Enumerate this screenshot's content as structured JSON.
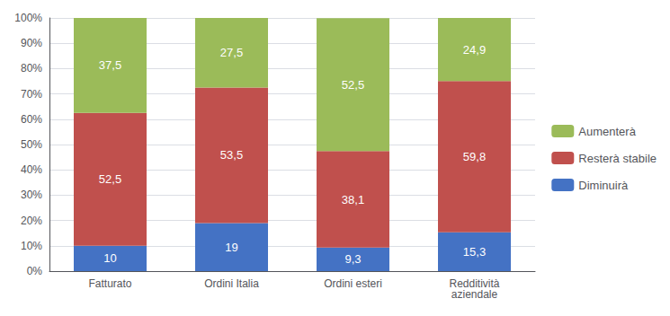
{
  "chart_data": {
    "type": "bar",
    "stacked": true,
    "data_labels": true,
    "grid": true,
    "legend": "right",
    "categories": [
      "Fatturato",
      "Ordini Italia",
      "Ordini esteri",
      "Redditività\naziendale"
    ],
    "series": [
      {
        "name": "Diminuirà",
        "color": "#4472C4",
        "values": [
          10.0,
          19.0,
          9.3,
          15.3
        ],
        "value_labels": [
          "10",
          "19",
          "9,3",
          "15,3"
        ]
      },
      {
        "name": "Resterà stabile",
        "color": "#C0504D",
        "values": [
          52.5,
          53.5,
          38.1,
          59.8
        ],
        "value_labels": [
          "52,5",
          "53,5",
          "38,1",
          "59,8"
        ]
      },
      {
        "name": "Aumenterà",
        "color": "#9BBB59",
        "values": [
          37.5,
          27.5,
          52.5,
          24.9
        ],
        "value_labels": [
          "37,5",
          "27,5",
          "52,5",
          "24,9"
        ]
      }
    ],
    "ylim": [
      0,
      100
    ],
    "yticks": [
      {
        "value": 0,
        "label": "0%"
      },
      {
        "value": 10,
        "label": "10%"
      },
      {
        "value": 20,
        "label": "20%"
      },
      {
        "value": 30,
        "label": "30%"
      },
      {
        "value": 40,
        "label": "40%"
      },
      {
        "value": 50,
        "label": "50%"
      },
      {
        "value": 60,
        "label": "60%"
      },
      {
        "value": 70,
        "label": "70%"
      },
      {
        "value": 80,
        "label": "80%"
      },
      {
        "value": 90,
        "label": "90%"
      },
      {
        "value": 100,
        "label": "100%"
      }
    ]
  }
}
